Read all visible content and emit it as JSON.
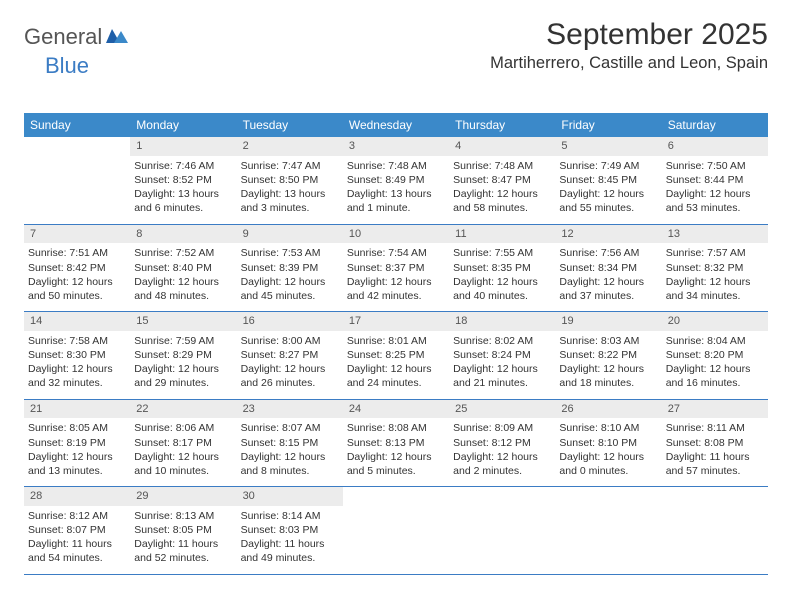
{
  "brand": {
    "part1": "General",
    "part2": "Blue"
  },
  "title": "September 2025",
  "location": "Martiherrero, Castille and Leon, Spain",
  "colors": {
    "header_bg": "#3b89c9",
    "header_fg": "#ffffff",
    "daynum_bg": "#ececec",
    "rule": "#3b7cc4",
    "brand_blue": "#3b7cc4",
    "brand_gray": "#555555",
    "text": "#333333",
    "page_bg": "#ffffff"
  },
  "day_names": [
    "Sunday",
    "Monday",
    "Tuesday",
    "Wednesday",
    "Thursday",
    "Friday",
    "Saturday"
  ],
  "weeks": [
    [
      null,
      {
        "n": "1",
        "sunrise": "7:46 AM",
        "sunset": "8:52 PM",
        "daylight": "13 hours and 6 minutes."
      },
      {
        "n": "2",
        "sunrise": "7:47 AM",
        "sunset": "8:50 PM",
        "daylight": "13 hours and 3 minutes."
      },
      {
        "n": "3",
        "sunrise": "7:48 AM",
        "sunset": "8:49 PM",
        "daylight": "13 hours and 1 minute."
      },
      {
        "n": "4",
        "sunrise": "7:48 AM",
        "sunset": "8:47 PM",
        "daylight": "12 hours and 58 minutes."
      },
      {
        "n": "5",
        "sunrise": "7:49 AM",
        "sunset": "8:45 PM",
        "daylight": "12 hours and 55 minutes."
      },
      {
        "n": "6",
        "sunrise": "7:50 AM",
        "sunset": "8:44 PM",
        "daylight": "12 hours and 53 minutes."
      }
    ],
    [
      {
        "n": "7",
        "sunrise": "7:51 AM",
        "sunset": "8:42 PM",
        "daylight": "12 hours and 50 minutes."
      },
      {
        "n": "8",
        "sunrise": "7:52 AM",
        "sunset": "8:40 PM",
        "daylight": "12 hours and 48 minutes."
      },
      {
        "n": "9",
        "sunrise": "7:53 AM",
        "sunset": "8:39 PM",
        "daylight": "12 hours and 45 minutes."
      },
      {
        "n": "10",
        "sunrise": "7:54 AM",
        "sunset": "8:37 PM",
        "daylight": "12 hours and 42 minutes."
      },
      {
        "n": "11",
        "sunrise": "7:55 AM",
        "sunset": "8:35 PM",
        "daylight": "12 hours and 40 minutes."
      },
      {
        "n": "12",
        "sunrise": "7:56 AM",
        "sunset": "8:34 PM",
        "daylight": "12 hours and 37 minutes."
      },
      {
        "n": "13",
        "sunrise": "7:57 AM",
        "sunset": "8:32 PM",
        "daylight": "12 hours and 34 minutes."
      }
    ],
    [
      {
        "n": "14",
        "sunrise": "7:58 AM",
        "sunset": "8:30 PM",
        "daylight": "12 hours and 32 minutes."
      },
      {
        "n": "15",
        "sunrise": "7:59 AM",
        "sunset": "8:29 PM",
        "daylight": "12 hours and 29 minutes."
      },
      {
        "n": "16",
        "sunrise": "8:00 AM",
        "sunset": "8:27 PM",
        "daylight": "12 hours and 26 minutes."
      },
      {
        "n": "17",
        "sunrise": "8:01 AM",
        "sunset": "8:25 PM",
        "daylight": "12 hours and 24 minutes."
      },
      {
        "n": "18",
        "sunrise": "8:02 AM",
        "sunset": "8:24 PM",
        "daylight": "12 hours and 21 minutes."
      },
      {
        "n": "19",
        "sunrise": "8:03 AM",
        "sunset": "8:22 PM",
        "daylight": "12 hours and 18 minutes."
      },
      {
        "n": "20",
        "sunrise": "8:04 AM",
        "sunset": "8:20 PM",
        "daylight": "12 hours and 16 minutes."
      }
    ],
    [
      {
        "n": "21",
        "sunrise": "8:05 AM",
        "sunset": "8:19 PM",
        "daylight": "12 hours and 13 minutes."
      },
      {
        "n": "22",
        "sunrise": "8:06 AM",
        "sunset": "8:17 PM",
        "daylight": "12 hours and 10 minutes."
      },
      {
        "n": "23",
        "sunrise": "8:07 AM",
        "sunset": "8:15 PM",
        "daylight": "12 hours and 8 minutes."
      },
      {
        "n": "24",
        "sunrise": "8:08 AM",
        "sunset": "8:13 PM",
        "daylight": "12 hours and 5 minutes."
      },
      {
        "n": "25",
        "sunrise": "8:09 AM",
        "sunset": "8:12 PM",
        "daylight": "12 hours and 2 minutes."
      },
      {
        "n": "26",
        "sunrise": "8:10 AM",
        "sunset": "8:10 PM",
        "daylight": "12 hours and 0 minutes."
      },
      {
        "n": "27",
        "sunrise": "8:11 AM",
        "sunset": "8:08 PM",
        "daylight": "11 hours and 57 minutes."
      }
    ],
    [
      {
        "n": "28",
        "sunrise": "8:12 AM",
        "sunset": "8:07 PM",
        "daylight": "11 hours and 54 minutes."
      },
      {
        "n": "29",
        "sunrise": "8:13 AM",
        "sunset": "8:05 PM",
        "daylight": "11 hours and 52 minutes."
      },
      {
        "n": "30",
        "sunrise": "8:14 AM",
        "sunset": "8:03 PM",
        "daylight": "11 hours and 49 minutes."
      },
      null,
      null,
      null,
      null
    ]
  ],
  "labels": {
    "sunrise_prefix": "Sunrise: ",
    "sunset_prefix": "Sunset: ",
    "daylight_prefix": "Daylight: "
  },
  "typography": {
    "title_fontsize": 30,
    "location_fontsize": 16.5,
    "dayname_fontsize": 12,
    "cell_fontsize": 10.5,
    "logo_fontsize": 22
  }
}
